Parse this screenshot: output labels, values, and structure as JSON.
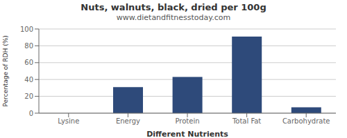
{
  "chart_data": {
    "type": "bar",
    "title": "Nuts, walnuts, black, dried per 100g",
    "subtitle": "www.dietandfitnesstoday.com",
    "xlabel": "Different Nutrients",
    "ylabel": "Percentage of RDH (%)",
    "categories": [
      "Lysine",
      "Energy",
      "Protein",
      "Total Fat",
      "Carbohydrate"
    ],
    "values": [
      0,
      31,
      43,
      91,
      7
    ],
    "color": "#2e4a7a",
    "ylim": [
      0,
      100
    ],
    "yticks": [
      0,
      20,
      40,
      60,
      80,
      100
    ],
    "grid": true
  }
}
